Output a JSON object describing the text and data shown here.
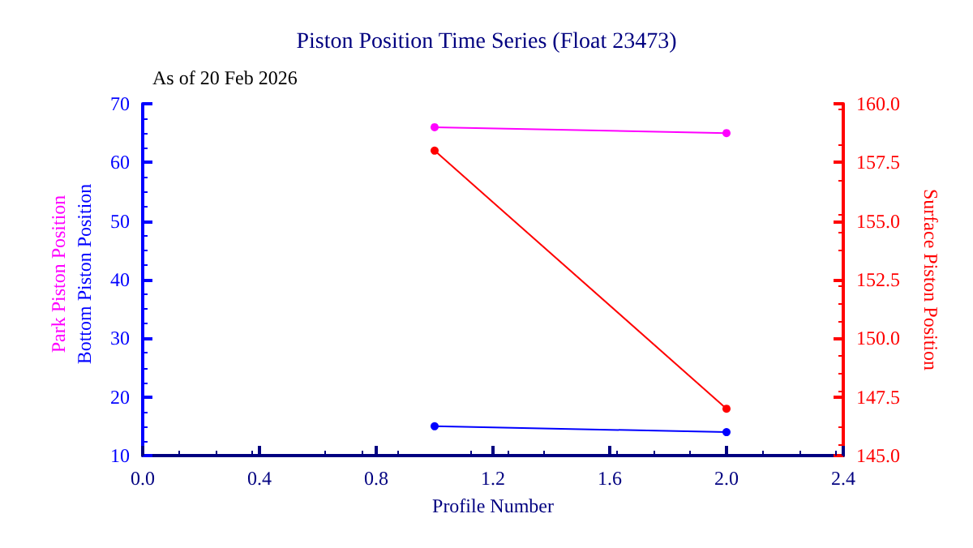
{
  "chart_data": {
    "type": "line",
    "title": "Piston Position Time Series (Float 23473)",
    "annotations": [
      "As of 20 Feb 2026"
    ],
    "xlabel": "Profile Number",
    "y2label": "Surface Piston Position",
    "xlim": [
      0,
      2.4
    ],
    "xticks": [
      {
        "value": 0,
        "label": "0.0"
      },
      0.4,
      0.8,
      1.2,
      1.6,
      {
        "value": 2,
        "label": "2.0"
      },
      2.4
    ],
    "ylim": [
      10,
      70
    ],
    "yticks": [
      10,
      20,
      30,
      40,
      50,
      60,
      70
    ],
    "y2lim": [
      145,
      160
    ],
    "y2ticks": [
      {
        "value": 145,
        "label": "145.0"
      },
      147.5,
      {
        "value": 150,
        "label": "150.0"
      },
      152.5,
      {
        "value": 155,
        "label": "155.0"
      },
      157.5,
      {
        "value": 160,
        "label": "160.0"
      }
    ],
    "x": [
      1,
      2
    ],
    "marker": "circle",
    "grid": false,
    "legend": false,
    "series": [
      {
        "name": "Park Piston Position",
        "color": "#ff00ff",
        "values": [
          66,
          65
        ]
      },
      {
        "name": "Bottom Piston Position",
        "color": "#0000ff",
        "values": [
          15,
          14
        ]
      },
      {
        "color": "#ff0000",
        "values": [
          158,
          147
        ],
        "axis": "y2"
      }
    ]
  }
}
